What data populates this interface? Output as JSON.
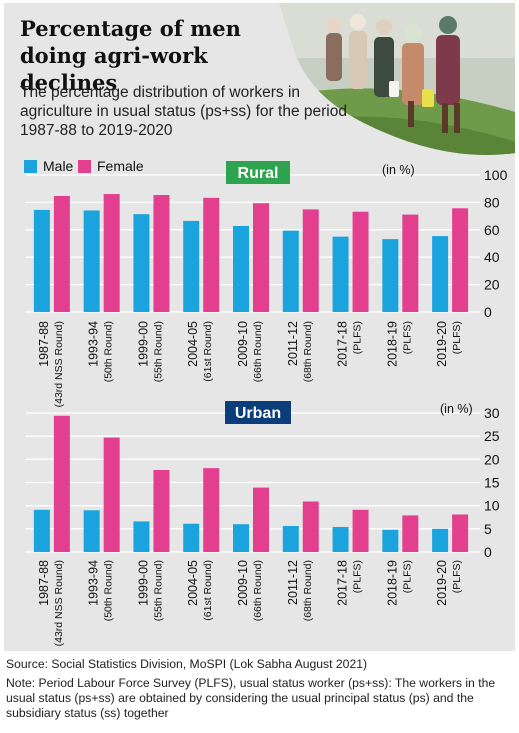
{
  "title": "Percentage of men doing agri-work declines",
  "subtitle": "The percentage distribution of workers in agriculture in usual status (ps+ss) for the period 1987-88 to 2019-2020",
  "legend": {
    "male": "Male",
    "female": "Female"
  },
  "colors": {
    "male": "#1ba3dd",
    "female": "#e2408f",
    "rural_badge": "#2ea44f",
    "urban_badge": "#0a3d7a",
    "grid": "#ffffff",
    "panel": "#e6e6e6"
  },
  "source": "Source: Social Statistics Division, MoSPI (Lok Sabha August 2021)",
  "note": "Note: Period Labour Force Survey (PLFS), usual status worker (ps+ss): The workers in the usual status (ps+ss) are obtained by considering the usual principal status (ps) and the subsidiary status (ss) together",
  "chart_data": [
    {
      "type": "bar",
      "title": "Rural",
      "unit_label": "(in %)",
      "categories": [
        [
          "1987-88",
          "(43rd NSS Round)"
        ],
        [
          "1993-94",
          "(50th Round)"
        ],
        [
          "1999-00",
          "(55th Round)"
        ],
        [
          "2004-05",
          "(61st Round)"
        ],
        [
          "2009-10",
          "(66th Round)"
        ],
        [
          "2011-12",
          "(68th Round)"
        ],
        [
          "2017-18",
          "(PLFS)"
        ],
        [
          "2018-19",
          "(PLFS)"
        ],
        [
          "2019-20",
          "(PLFS)"
        ]
      ],
      "series": [
        {
          "name": "Male",
          "values": [
            74.5,
            74.1,
            71.4,
            66.5,
            62.8,
            59.4,
            55.0,
            53.2,
            55.4
          ]
        },
        {
          "name": "Female",
          "values": [
            84.7,
            86.1,
            85.4,
            83.3,
            79.4,
            74.9,
            73.2,
            71.1,
            75.7
          ]
        }
      ],
      "yticks": [
        0,
        20,
        40,
        60,
        80,
        100
      ],
      "ylim": [
        0,
        100
      ],
      "grid": true
    },
    {
      "type": "bar",
      "title": "Urban",
      "unit_label": "(in %)",
      "categories": [
        [
          "1987-88",
          "(43rd NSS Round)"
        ],
        [
          "1993-94",
          "(50th Round)"
        ],
        [
          "1999-00",
          "(55th Round)"
        ],
        [
          "2004-05",
          "(61st Round)"
        ],
        [
          "2009-10",
          "(66th Round)"
        ],
        [
          "2011-12",
          "(68th Round)"
        ],
        [
          "2017-18",
          "(PLFS)"
        ],
        [
          "2018-19",
          "(PLFS)"
        ],
        [
          "2019-20",
          "(PLFS)"
        ]
      ],
      "series": [
        {
          "name": "Male",
          "values": [
            9.1,
            9.0,
            6.6,
            6.1,
            6.0,
            5.6,
            5.4,
            4.8,
            5.0
          ]
        },
        {
          "name": "Female",
          "values": [
            29.4,
            24.7,
            17.7,
            18.1,
            13.9,
            10.9,
            9.1,
            7.9,
            8.1
          ]
        }
      ],
      "yticks": [
        0,
        5,
        10,
        15,
        20,
        25,
        30
      ],
      "ylim": [
        0,
        30
      ],
      "grid": true
    }
  ]
}
